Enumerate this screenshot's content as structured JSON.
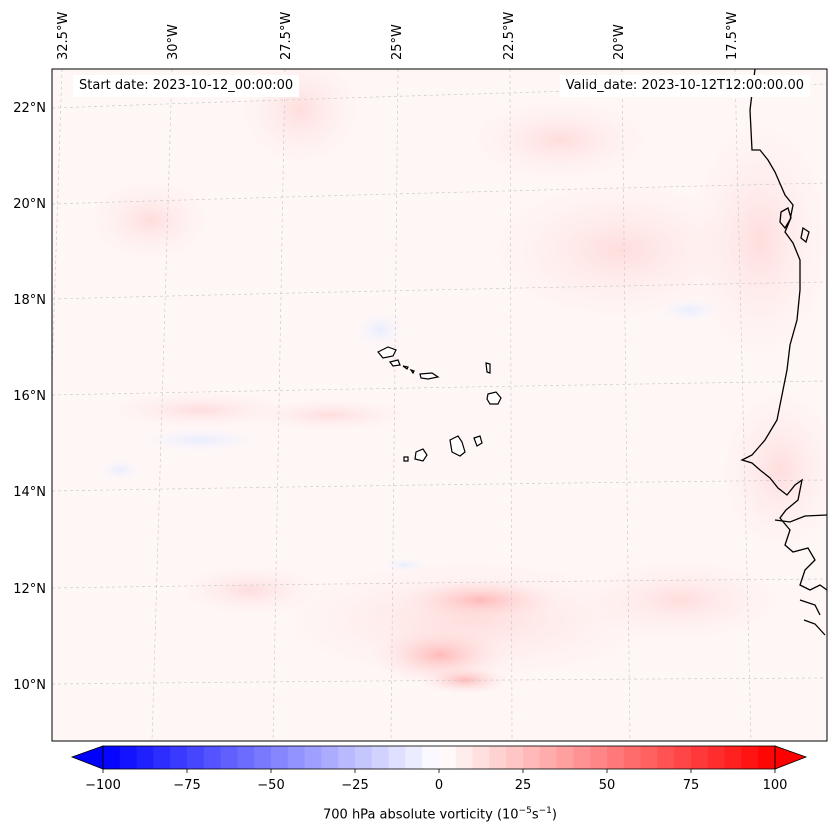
{
  "header": {
    "start_date": "Start date: 2023-10-12_00:00:00",
    "valid_date": "Valid_date: 2023-10-12T12:00:00.00"
  },
  "lon_labels": [
    "32.5°W",
    "30°W",
    "27.5°W",
    "25°W",
    "22.5°W",
    "20°W",
    "17.5°W"
  ],
  "lat_labels": [
    "22°N",
    "20°N",
    "18°N",
    "16°N",
    "14°N",
    "12°N",
    "10°N"
  ],
  "colorbar": {
    "min": -100,
    "max": 100,
    "step": 5,
    "ticks": [
      "−100",
      "−75",
      "−50",
      "−25",
      "0",
      "25",
      "50",
      "75",
      "100"
    ],
    "label_main": "700 hPa absolute vorticity (10",
    "label_sup1": "−5",
    "label_mid": "s",
    "label_sup2": "−1",
    "label_end": ")",
    "colormap": "bwr",
    "low_color": "#0000ff",
    "mid_color": "#ffffff",
    "high_color": "#ff0000"
  },
  "map": {
    "field": "700 hPa absolute vorticity",
    "coastline_color": "#000000",
    "gridline_color": "#cccccc",
    "background_tint": "#fff6f6"
  }
}
